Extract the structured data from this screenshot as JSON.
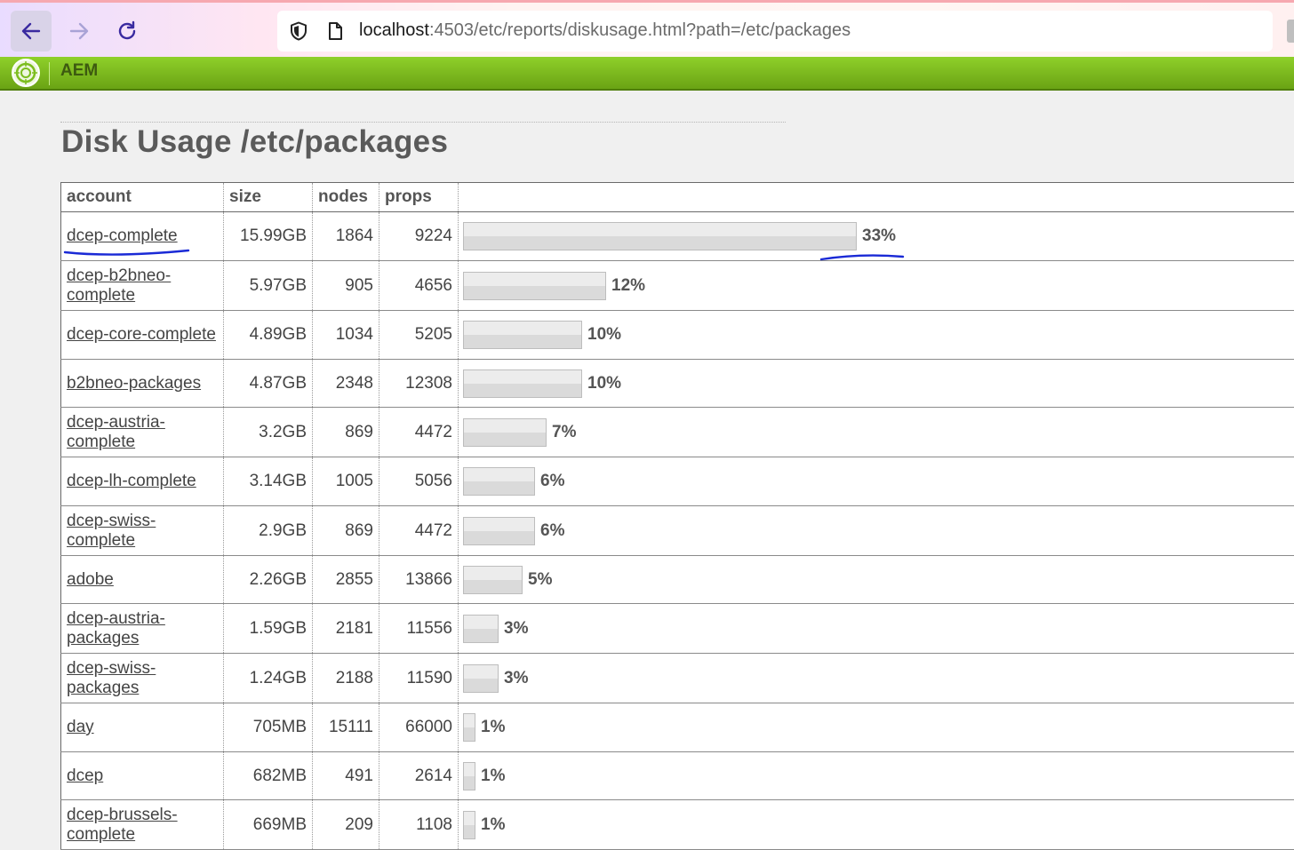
{
  "browser": {
    "url_host": "localhost",
    "url_rest": ":4503/etc/reports/diskusage.html?path=/etc/packages"
  },
  "app": {
    "title": "AEM"
  },
  "page": {
    "title": "Disk Usage /etc/packages"
  },
  "table": {
    "headers": {
      "account": "account",
      "size": "size",
      "nodes": "nodes",
      "props": "props"
    },
    "rows": [
      {
        "account": "dcep-complete",
        "size": "15.99GB",
        "nodes": "1864",
        "props": "9224",
        "pct": "33%",
        "share": 0.33,
        "row_h": 55
      },
      {
        "account": "dcep-b2bneo-complete",
        "size": "5.97GB",
        "nodes": "905",
        "props": "4656",
        "pct": "12%",
        "share": 0.12,
        "row_h": 56
      },
      {
        "account": "dcep-core-complete",
        "size": "4.89GB",
        "nodes": "1034",
        "props": "5205",
        "pct": "10%",
        "share": 0.1,
        "row_h": 55
      },
      {
        "account": "b2bneo-packages",
        "size": "4.87GB",
        "nodes": "2348",
        "props": "12308",
        "pct": "10%",
        "share": 0.1,
        "row_h": 54
      },
      {
        "account": "dcep-austria-complete",
        "size": "3.2GB",
        "nodes": "869",
        "props": "4472",
        "pct": "7%",
        "share": 0.07,
        "row_h": 56
      },
      {
        "account": "dcep-lh-complete",
        "size": "3.14GB",
        "nodes": "1005",
        "props": "5056",
        "pct": "6%",
        "share": 0.06,
        "row_h": 55
      },
      {
        "account": "dcep-swiss-complete",
        "size": "2.9GB",
        "nodes": "869",
        "props": "4472",
        "pct": "6%",
        "share": 0.06,
        "row_h": 56
      },
      {
        "account": "adobe",
        "size": "2.26GB",
        "nodes": "2855",
        "props": "13866",
        "pct": "5%",
        "share": 0.05,
        "row_h": 54
      },
      {
        "account": "dcep-austria-packages",
        "size": "1.59GB",
        "nodes": "2181",
        "props": "11556",
        "pct": "3%",
        "share": 0.03,
        "row_h": 56
      },
      {
        "account": "dcep-swiss-packages",
        "size": "1.24GB",
        "nodes": "2188",
        "props": "11590",
        "pct": "3%",
        "share": 0.03,
        "row_h": 56
      },
      {
        "account": "day",
        "size": "705MB",
        "nodes": "15111",
        "props": "66000",
        "pct": "1%",
        "share": 0.01,
        "row_h": 55
      },
      {
        "account": "dcep",
        "size": "682MB",
        "nodes": "491",
        "props": "2614",
        "pct": "1%",
        "share": 0.01,
        "row_h": 54
      },
      {
        "account": "dcep-brussels-complete",
        "size": "669MB",
        "nodes": "209",
        "props": "1108",
        "pct": "1%",
        "share": 0.01,
        "row_h": 56
      }
    ]
  },
  "colors": {
    "aem_green": "#7cbd1e",
    "annotation_pen": "#1a2ad6"
  },
  "icons": [
    "back-arrow-icon",
    "forward-arrow-icon",
    "reload-icon",
    "shield-icon",
    "page-icon",
    "aem-logo-icon"
  ]
}
